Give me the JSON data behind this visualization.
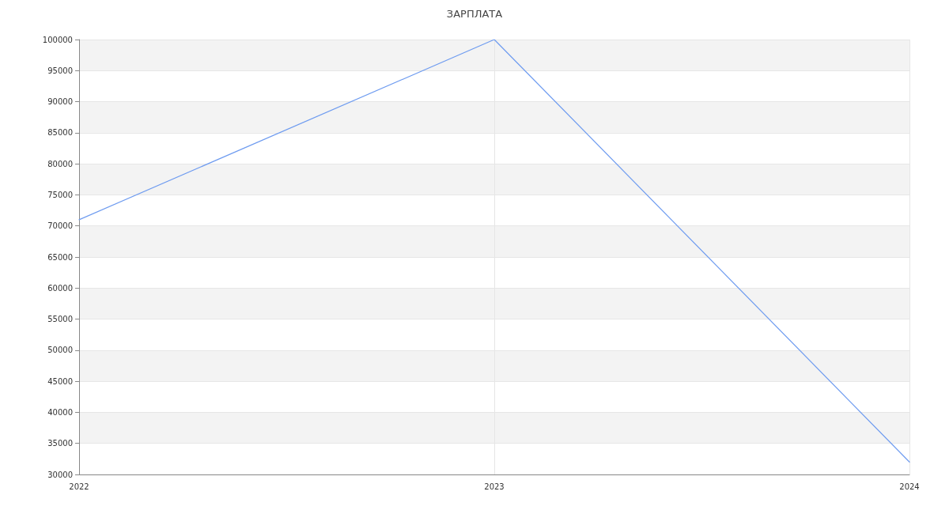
{
  "chart_data": {
    "type": "line",
    "title": "ЗАРПЛАТА",
    "categories": [
      "2022",
      "2023",
      "2024"
    ],
    "series": [
      {
        "color": "#6f9cf0",
        "values": [
          71000,
          100000,
          32000
        ]
      }
    ],
    "ylim": [
      30000,
      100000
    ],
    "yticks": [
      30000,
      35000,
      40000,
      45000,
      50000,
      55000,
      60000,
      65000,
      70000,
      75000,
      80000,
      85000,
      90000,
      95000,
      100000
    ],
    "grid": true,
    "marker": "none"
  }
}
